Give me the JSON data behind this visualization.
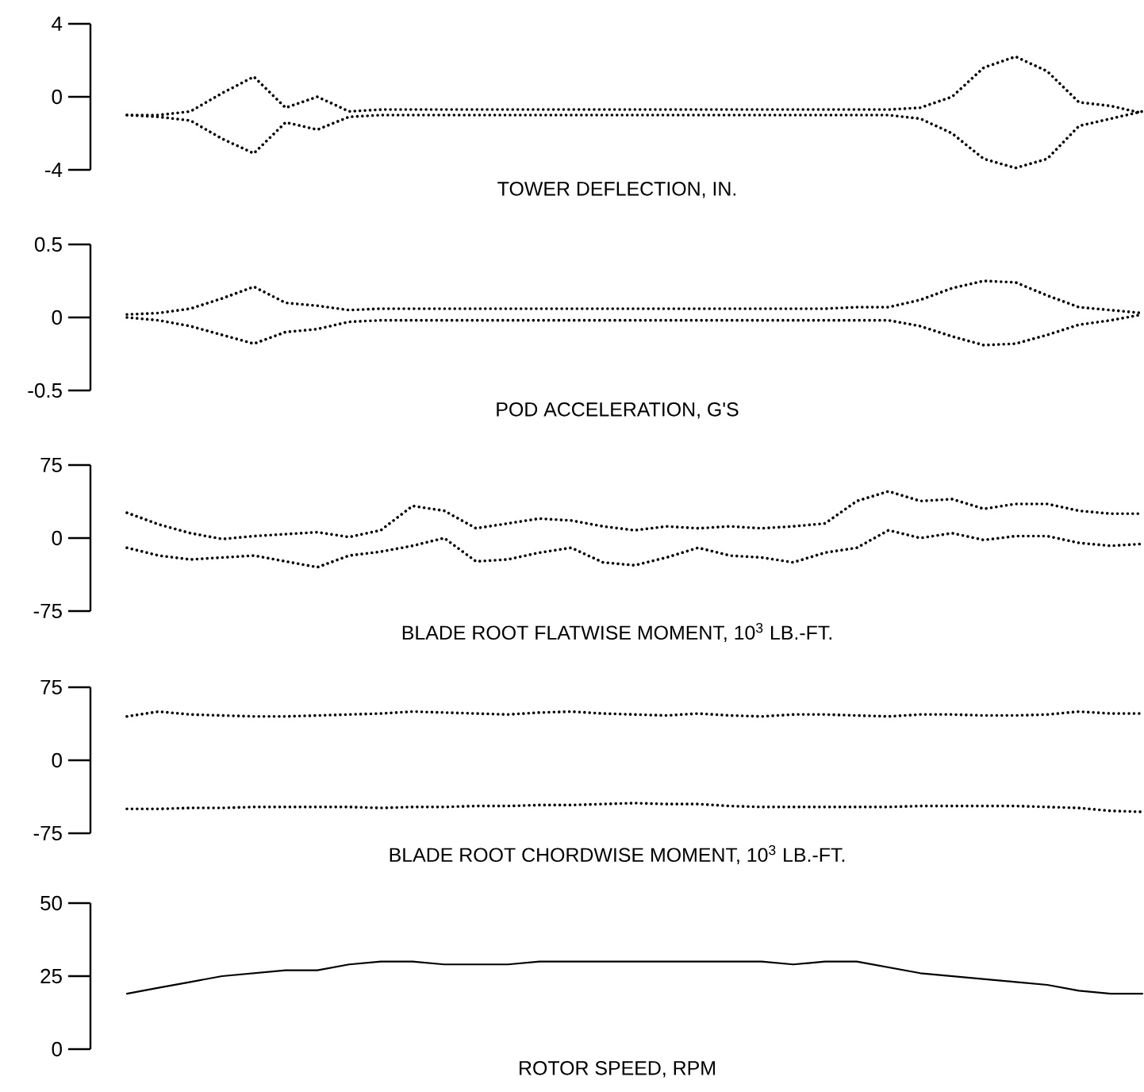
{
  "chart_data": [
    {
      "type": "line",
      "xlabel": "TOWER DEFLECTION, IN.",
      "tick_labels": "y",
      "ylim": [
        -4,
        4
      ],
      "yticks": [
        -4,
        0,
        4
      ],
      "categories": [
        null,
        null,
        null,
        null,
        null,
        null,
        null,
        null,
        null,
        null,
        null,
        null,
        null,
        null,
        null,
        null,
        null,
        null,
        null,
        null,
        null,
        null,
        null,
        null,
        null,
        null,
        null,
        null,
        null,
        null,
        null,
        null,
        null
      ],
      "series": [
        {
          "color": "#000000",
          "line_style": "dotted",
          "values": [
            -1,
            -1,
            -0.8,
            0.2,
            1.1,
            -0.6,
            0,
            -0.8,
            -0.7,
            -0.7,
            -0.7,
            -0.7,
            -0.7,
            -0.7,
            -0.7,
            -0.7,
            -0.7,
            -0.7,
            -0.7,
            -0.7,
            -0.7,
            -0.7,
            -0.7,
            -0.7,
            -0.7,
            -0.6,
            0,
            1.6,
            2.2,
            1.4,
            -0.3,
            -0.5,
            -0.9
          ]
        },
        {
          "color": "#000000",
          "line_style": "dotted",
          "values": [
            -1,
            -1.1,
            -1.3,
            -2.3,
            -3.1,
            -1.4,
            -1.8,
            -1.1,
            -1.0,
            -1.0,
            -1.0,
            -1.0,
            -1.0,
            -1.0,
            -1.0,
            -1.0,
            -1.0,
            -1.0,
            -1.0,
            -1.0,
            -1.0,
            -1.0,
            -1.0,
            -1.0,
            -1.0,
            -1.2,
            -2.0,
            -3.4,
            -3.9,
            -3.4,
            -1.6,
            -1.2,
            -0.8
          ]
        }
      ]
    },
    {
      "type": "line",
      "xlabel": "POD ACCELERATION, G'S",
      "tick_labels": "y",
      "ylim": [
        -0.5,
        0.5
      ],
      "yticks": [
        -0.5,
        0,
        0.5
      ],
      "categories": [
        null,
        null,
        null,
        null,
        null,
        null,
        null,
        null,
        null,
        null,
        null,
        null,
        null,
        null,
        null,
        null,
        null,
        null,
        null,
        null,
        null,
        null,
        null,
        null,
        null,
        null,
        null,
        null,
        null,
        null,
        null,
        null,
        null
      ],
      "series": [
        {
          "color": "#000000",
          "line_style": "dotted",
          "values": [
            0.02,
            0.03,
            0.06,
            0.13,
            0.21,
            0.1,
            0.08,
            0.05,
            0.06,
            0.06,
            0.06,
            0.06,
            0.06,
            0.06,
            0.06,
            0.06,
            0.06,
            0.06,
            0.06,
            0.06,
            0.06,
            0.06,
            0.06,
            0.07,
            0.07,
            0.12,
            0.2,
            0.25,
            0.24,
            0.15,
            0.07,
            0.05,
            0.03
          ]
        },
        {
          "color": "#000000",
          "line_style": "dotted",
          "values": [
            0,
            -0.02,
            -0.06,
            -0.12,
            -0.18,
            -0.1,
            -0.08,
            -0.03,
            -0.02,
            -0.02,
            -0.02,
            -0.02,
            -0.02,
            -0.02,
            -0.02,
            -0.02,
            -0.02,
            -0.02,
            -0.02,
            -0.02,
            -0.02,
            -0.02,
            -0.02,
            -0.02,
            -0.02,
            -0.06,
            -0.13,
            -0.19,
            -0.18,
            -0.12,
            -0.05,
            -0.02,
            0.02
          ]
        }
      ]
    },
    {
      "type": "line",
      "xlabel": "BLADE ROOT FLATWISE MOMENT, 10$^{3}$ LB.-FT.",
      "tick_labels": "y",
      "ylim": [
        -75,
        75
      ],
      "yticks": [
        -75,
        0,
        75
      ],
      "categories": [
        null,
        null,
        null,
        null,
        null,
        null,
        null,
        null,
        null,
        null,
        null,
        null,
        null,
        null,
        null,
        null,
        null,
        null,
        null,
        null,
        null,
        null,
        null,
        null,
        null,
        null,
        null,
        null,
        null,
        null,
        null,
        null,
        null
      ],
      "series": [
        {
          "color": "#000000",
          "line_style": "dotted",
          "values": [
            26,
            14,
            5,
            -1,
            2,
            4,
            6,
            1,
            8,
            33,
            28,
            10,
            15,
            20,
            18,
            12,
            8,
            12,
            10,
            12,
            10,
            12,
            15,
            38,
            48,
            38,
            40,
            30,
            35,
            35,
            28,
            25,
            25
          ]
        },
        {
          "color": "#000000",
          "line_style": "dotted",
          "values": [
            -10,
            -18,
            -22,
            -20,
            -18,
            -24,
            -30,
            -18,
            -14,
            -8,
            0,
            -24,
            -22,
            -15,
            -10,
            -25,
            -28,
            -20,
            -10,
            -18,
            -20,
            -25,
            -15,
            -10,
            8,
            0,
            5,
            -2,
            2,
            2,
            -5,
            -8,
            -6
          ]
        }
      ]
    },
    {
      "type": "line",
      "xlabel": "BLADE ROOT CHORDWISE MOMENT, 10$^{3}$ LB.-FT.",
      "tick_labels": "y",
      "ylim": [
        -75,
        75
      ],
      "yticks": [
        -75,
        0,
        75
      ],
      "categories": [
        null,
        null,
        null,
        null,
        null,
        null,
        null,
        null,
        null,
        null,
        null,
        null,
        null,
        null,
        null,
        null,
        null,
        null,
        null,
        null,
        null,
        null,
        null,
        null,
        null,
        null,
        null,
        null,
        null,
        null,
        null,
        null,
        null
      ],
      "series": [
        {
          "color": "#000000",
          "line_style": "dotted",
          "values": [
            45,
            50,
            47,
            46,
            45,
            45,
            46,
            47,
            48,
            50,
            49,
            48,
            47,
            49,
            50,
            48,
            47,
            46,
            48,
            46,
            45,
            47,
            47,
            46,
            45,
            47,
            47,
            46,
            46,
            47,
            50,
            48,
            48
          ]
        },
        {
          "color": "#000000",
          "line_style": "dotted",
          "values": [
            -50,
            -50,
            -49,
            -49,
            -48,
            -48,
            -48,
            -48,
            -49,
            -48,
            -48,
            -47,
            -47,
            -46,
            -46,
            -45,
            -44,
            -45,
            -45,
            -47,
            -48,
            -48,
            -48,
            -48,
            -48,
            -47,
            -47,
            -47,
            -47,
            -48,
            -49,
            -52,
            -53
          ]
        }
      ]
    },
    {
      "type": "line",
      "xlabel": "ROTOR SPEED, RPM",
      "tick_labels": "y",
      "ylim": [
        0,
        50
      ],
      "yticks": [
        0,
        25,
        50
      ],
      "categories": [
        null,
        null,
        null,
        null,
        null,
        null,
        null,
        null,
        null,
        null,
        null,
        null,
        null,
        null,
        null,
        null,
        null,
        null,
        null,
        null,
        null,
        null,
        null,
        null,
        null,
        null,
        null,
        null,
        null,
        null,
        null,
        null,
        null
      ],
      "series": [
        {
          "color": "#000000",
          "line_style": "solid",
          "values": [
            19,
            21,
            23,
            25,
            26,
            27,
            27,
            29,
            30,
            30,
            29,
            29,
            29,
            30,
            30,
            30,
            30,
            30,
            30,
            30,
            30,
            29,
            30,
            30,
            28,
            26,
            25,
            24,
            23,
            22,
            20,
            19,
            19
          ]
        }
      ]
    }
  ]
}
